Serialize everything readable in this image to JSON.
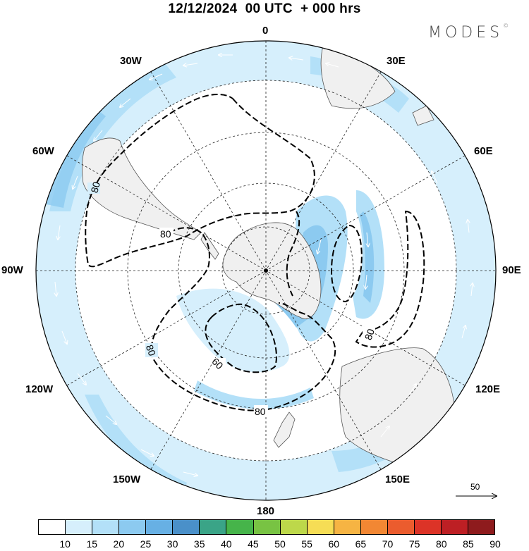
{
  "header": {
    "title": "12/12/2024  00 UTC  + 000 hrs",
    "logo": "MODES"
  },
  "longitude_labels": {
    "top": "0",
    "bottom": "180",
    "left": "90W",
    "right": "90E",
    "upper_left_30": "30W",
    "upper_right_30": "30E",
    "upper_left_60": "60W",
    "upper_right_60": "60E",
    "lower_left_120": "120W",
    "lower_right_120": "120E",
    "lower_left_150": "150W",
    "lower_right_150": "150E"
  },
  "contour_labels": {
    "west_80": "80",
    "inner_80": "80",
    "southwest_80": "80",
    "bottom_80": "80",
    "inner_60": "60",
    "east_80": "80"
  },
  "reference_vector": {
    "label": "50"
  },
  "colorbar": {
    "ticks": [
      "10",
      "15",
      "20",
      "25",
      "30",
      "35",
      "40",
      "45",
      "50",
      "55",
      "60",
      "65",
      "70",
      "75",
      "80",
      "85",
      "90"
    ],
    "colors": [
      "#ffffff",
      "#d6effc",
      "#b3e0f8",
      "#8ccaf0",
      "#67b0e4",
      "#4a90c9",
      "#3aa487",
      "#46b44a",
      "#78c343",
      "#bdd84a",
      "#f6dd55",
      "#f6b443",
      "#f28733",
      "#eb5c2e",
      "#dc3327",
      "#bd1f24",
      "#8e1b1d"
    ]
  }
}
